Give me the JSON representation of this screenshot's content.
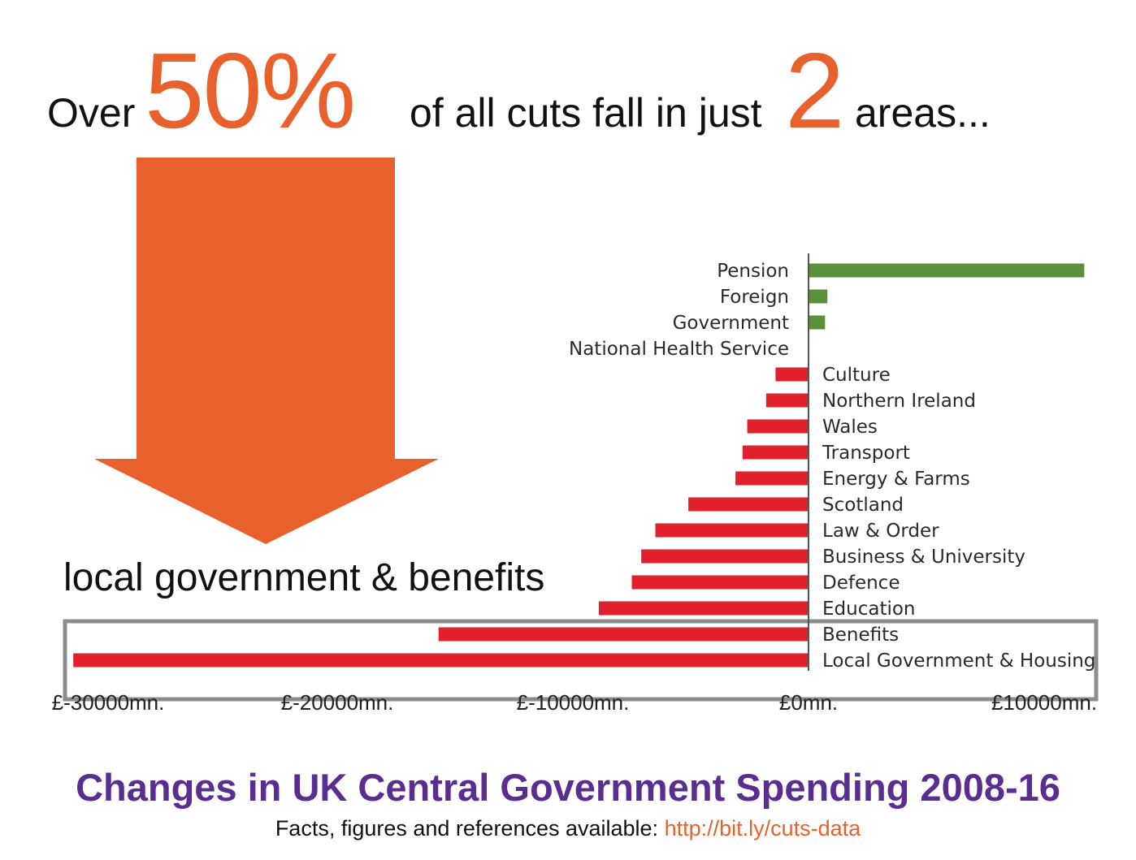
{
  "headline": {
    "prefix": "Over",
    "big_percent": "50%",
    "middle": "of all cuts fall in just",
    "big_number": "2",
    "suffix": "areas..."
  },
  "callout": "local government & benefits",
  "footer": {
    "title": "Changes in UK Central Government Spending 2008-16",
    "note": "Facts, figures and references available: ",
    "link": "http://bit.ly/cuts-data"
  },
  "colors": {
    "accent": "#e8612c",
    "increase": "#5a8f3c",
    "decrease": "#e0202a",
    "title": "#5a2d91",
    "highlight_box": "#8c8c8c"
  },
  "chart_data": {
    "type": "bar",
    "orientation": "horizontal",
    "xlim": [
      -30000,
      10000
    ],
    "unit": "£mn",
    "x_ticks": [
      "£-30000mn.",
      "£-20000mn.",
      "£-10000mn.",
      "£0mn.",
      "£10000mn."
    ],
    "x_tick_values": [
      -30000,
      -20000,
      -10000,
      0,
      10000
    ],
    "categories": [
      "Pension",
      "Foreign",
      "Government",
      "National Health Service",
      "Culture",
      "Northern Ireland",
      "Wales",
      "Transport",
      "Energy & Farms",
      "Scotland",
      "Law & Order",
      "Business & University",
      "Defence",
      "Education",
      "Benefits",
      "Local Government & Housing"
    ],
    "values": [
      11700,
      800,
      700,
      0,
      -1400,
      -1800,
      -2600,
      -2800,
      -3100,
      -5100,
      -6500,
      -7100,
      -7500,
      -8900,
      -15700,
      -31200
    ],
    "highlighted": [
      "Benefits",
      "Local Government & Housing"
    ],
    "grid": false
  }
}
